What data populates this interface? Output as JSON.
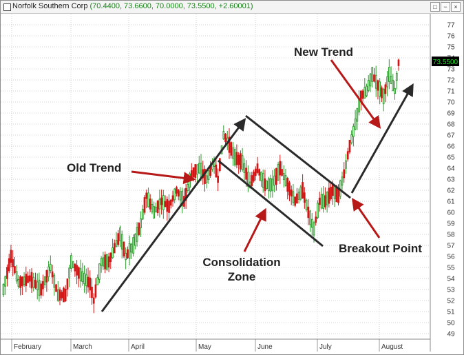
{
  "window": {
    "title": "Norfolk Southern Corp",
    "quote": "(70.4400, 73.6600, 70.0000, 73.5500, +2.60001)",
    "buttons": [
      "□",
      "−",
      "×"
    ]
  },
  "chart_data": {
    "type": "candlestick",
    "title": "Norfolk Southern Corp",
    "y_axis": {
      "position": "right",
      "range": [
        48.5,
        78
      ],
      "ticks": [
        49,
        50,
        51,
        52,
        53,
        54,
        55,
        56,
        57,
        58,
        59,
        60,
        61,
        62,
        63,
        64,
        65,
        66,
        67,
        68,
        69,
        70,
        71,
        72,
        73,
        74,
        75,
        76,
        77
      ]
    },
    "x_axis": {
      "labels": [
        "February",
        "March",
        "April",
        "May",
        "June",
        "July",
        "August"
      ]
    },
    "last_price": "73.5500",
    "colors": {
      "up": "#2e9c2e",
      "down": "#d21414",
      "grid": "#d0d0d0",
      "arrow_dark": "#2a2a2a",
      "arrow_red": "#b71818",
      "price_tag_bg": "#000000",
      "price_tag_text": "#24e02a"
    },
    "annotations": [
      "Old Trend",
      "Consolidation",
      "Zone",
      "New Trend",
      "Breakout Point"
    ],
    "waypoints": [
      {
        "d": 0,
        "p": 53.0
      },
      {
        "d": 4,
        "p": 56.0
      },
      {
        "d": 8,
        "p": 53.6
      },
      {
        "d": 14,
        "p": 54.0
      },
      {
        "d": 20,
        "p": 53.0
      },
      {
        "d": 25,
        "p": 55.0
      },
      {
        "d": 29,
        "p": 52.5
      },
      {
        "d": 33,
        "p": 52.5
      },
      {
        "d": 36,
        "p": 55.5
      },
      {
        "d": 40,
        "p": 54.5
      },
      {
        "d": 46,
        "p": 53.5
      },
      {
        "d": 48,
        "p": 52.0
      },
      {
        "d": 52,
        "p": 55.5
      },
      {
        "d": 56,
        "p": 55.5
      },
      {
        "d": 62,
        "p": 58.0
      },
      {
        "d": 65,
        "p": 56.0
      },
      {
        "d": 69,
        "p": 57.0
      },
      {
        "d": 73,
        "p": 59.0
      },
      {
        "d": 76,
        "p": 61.5
      },
      {
        "d": 80,
        "p": 60.0
      },
      {
        "d": 84,
        "p": 61.0
      },
      {
        "d": 88,
        "p": 60.5
      },
      {
        "d": 92,
        "p": 62.0
      },
      {
        "d": 96,
        "p": 61.0
      },
      {
        "d": 100,
        "p": 63.5
      },
      {
        "d": 104,
        "p": 64.0
      },
      {
        "d": 108,
        "p": 63.0
      },
      {
        "d": 112,
        "p": 64.5
      },
      {
        "d": 114,
        "p": 63.0
      },
      {
        "d": 117,
        "p": 67.0
      },
      {
        "d": 119,
        "p": 66.5
      },
      {
        "d": 123,
        "p": 65.0
      },
      {
        "d": 127,
        "p": 64.5
      },
      {
        "d": 131,
        "p": 62.5
      },
      {
        "d": 135,
        "p": 64.0
      },
      {
        "d": 139,
        "p": 62.5
      },
      {
        "d": 143,
        "p": 62.5
      },
      {
        "d": 147,
        "p": 64.0
      },
      {
        "d": 151,
        "p": 62.5
      },
      {
        "d": 155,
        "p": 61.0
      },
      {
        "d": 159,
        "p": 62.0
      },
      {
        "d": 162,
        "p": 60.0
      },
      {
        "d": 165,
        "p": 58.5
      },
      {
        "d": 168,
        "p": 61.0
      },
      {
        "d": 171,
        "p": 61.0
      },
      {
        "d": 175,
        "p": 62.0
      },
      {
        "d": 178,
        "p": 61.5
      },
      {
        "d": 181,
        "p": 63.5
      },
      {
        "d": 184,
        "p": 66.0
      },
      {
        "d": 187,
        "p": 68.0
      },
      {
        "d": 190,
        "p": 70.5
      },
      {
        "d": 193,
        "p": 71.0
      },
      {
        "d": 196,
        "p": 72.5
      },
      {
        "d": 199,
        "p": 71.5
      },
      {
        "d": 202,
        "p": 70.5
      },
      {
        "d": 205,
        "p": 72.5
      },
      {
        "d": 208,
        "p": 71.0
      },
      {
        "d": 210,
        "p": 73.55
      }
    ]
  }
}
